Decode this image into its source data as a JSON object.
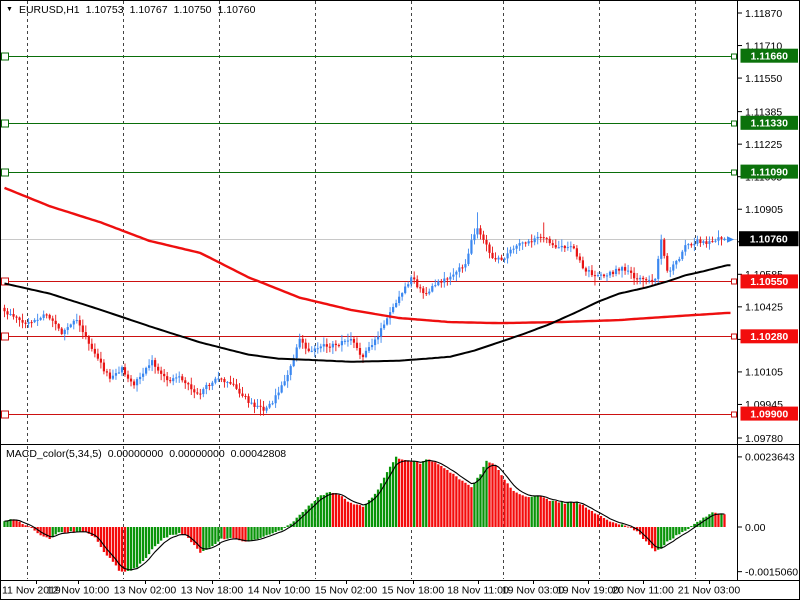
{
  "header": {
    "symbol": "EURUSD,H1",
    "open": "1.10753",
    "high": "1.10767",
    "low": "1.10750",
    "close": "1.10760"
  },
  "indicator": {
    "name": "MACD_color(5,34,5)",
    "v1": "0.00000000",
    "v2": "0.00000000",
    "v3": "0.00042808"
  },
  "colors": {
    "bull": "#3a87f0",
    "bear": "#e81414",
    "macd_up": "#089408",
    "macd_down": "#f40b0b",
    "ma_slow": "#ee0f0f",
    "ma_fast": "#000000",
    "level_res": "#0a6e0a",
    "level_sup": "#cc1111",
    "box_res": "#0b720b",
    "box_sup": "#f20d0d",
    "box_current": "#000000",
    "current_line": "#c8c8c8",
    "grid": "#444444",
    "last_tick": "#3a87f0"
  },
  "chart_data": {
    "type": "candlestick",
    "symbol": "EURUSD",
    "timeframe": "H1",
    "title": "EURUSD,H1 with MACD_color(5,34,5)",
    "ohlc_current": {
      "open": 1.10753,
      "high": 1.10767,
      "low": 1.1075,
      "close": 1.1076
    },
    "price_axis_labels": [
      "1.11870",
      "1.11710",
      "1.11550",
      "1.11385",
      "1.11225",
      "1.11065",
      "1.10905",
      "1.10745",
      "1.10585",
      "1.10425",
      "1.10265",
      "1.10105",
      "1.09945",
      "1.09780"
    ],
    "macd_axis_labels": [
      "0.0023643",
      "0.00",
      "-0.0015060"
    ],
    "time_labels": [
      "11 Nov 2019",
      "12 Nov 10:00",
      "13 Nov 02:00",
      "13 Nov 18:00",
      "14 Nov 10:00",
      "15 Nov 02:00",
      "15 Nov 18:00",
      "18 Nov 11:00",
      "19 Nov 03:00",
      "19 Nov 19:00",
      "20 Nov 11:00",
      "21 Nov 03:00"
    ],
    "levels": {
      "resistance": [
        1.1166,
        1.1133,
        1.1109
      ],
      "support": [
        1.1055,
        1.1028,
        1.099
      ],
      "current": 1.1076
    },
    "candle_count": 240,
    "price_path_anchors": [
      [
        0,
        1.104
      ],
      [
        7,
        1.1034
      ],
      [
        14,
        1.1039
      ],
      [
        19,
        1.103
      ],
      [
        24,
        1.1037
      ],
      [
        28,
        1.1024
      ],
      [
        35,
        1.1007
      ],
      [
        39,
        1.1012
      ],
      [
        43,
        1.1004
      ],
      [
        49,
        1.1016
      ],
      [
        54,
        1.1006
      ],
      [
        58,
        1.1009
      ],
      [
        64,
        1.0999
      ],
      [
        70,
        1.1007
      ],
      [
        75,
        1.1005
      ],
      [
        79,
        1.0999
      ],
      [
        83,
        1.0993
      ],
      [
        87,
        1.0992
      ],
      [
        91,
        1.1
      ],
      [
        95,
        1.1013
      ],
      [
        98,
        1.1026
      ],
      [
        101,
        1.102
      ],
      [
        105,
        1.1023
      ],
      [
        110,
        1.1024
      ],
      [
        115,
        1.1026
      ],
      [
        119,
        1.1018
      ],
      [
        123,
        1.1026
      ],
      [
        128,
        1.104
      ],
      [
        132,
        1.105
      ],
      [
        135,
        1.1057
      ],
      [
        139,
        1.1049
      ],
      [
        144,
        1.1054
      ],
      [
        149,
        1.1058
      ],
      [
        153,
        1.1064
      ],
      [
        155,
        1.1075
      ],
      [
        157,
        1.1081
      ],
      [
        159,
        1.1075
      ],
      [
        161,
        1.107
      ],
      [
        163,
        1.1065
      ],
      [
        167,
        1.1068
      ],
      [
        170,
        1.1073
      ],
      [
        174,
        1.1074
      ],
      [
        179,
        1.1077
      ],
      [
        183,
        1.1071
      ],
      [
        188,
        1.1073
      ],
      [
        192,
        1.1062
      ],
      [
        196,
        1.1057
      ],
      [
        200,
        1.1058
      ],
      [
        205,
        1.1062
      ],
      [
        209,
        1.1057
      ],
      [
        213,
        1.1055
      ],
      [
        216,
        1.1057
      ],
      [
        218,
        1.1076
      ],
      [
        220,
        1.106
      ],
      [
        223,
        1.1064
      ],
      [
        226,
        1.1072
      ],
      [
        230,
        1.1075
      ],
      [
        234,
        1.1074
      ],
      [
        237,
        1.1077
      ],
      [
        239,
        1.1076
      ]
    ],
    "wick_highs": [
      [
        157,
        1.1089
      ],
      [
        179,
        1.1084
      ],
      [
        218,
        1.1078
      ]
    ],
    "wick_lows": [
      [
        85,
        1.0989
      ],
      [
        196,
        1.1053
      ],
      [
        212,
        1.1052
      ]
    ],
    "ma_slow_anchors": [
      [
        0,
        1.1101
      ],
      [
        15,
        1.1092
      ],
      [
        32,
        1.1084
      ],
      [
        48,
        1.1075
      ],
      [
        65,
        1.1069
      ],
      [
        81,
        1.1057
      ],
      [
        98,
        1.1047
      ],
      [
        115,
        1.1041
      ],
      [
        131,
        1.1037
      ],
      [
        148,
        1.1035
      ],
      [
        164,
        1.10345
      ],
      [
        184,
        1.1035
      ],
      [
        204,
        1.1036
      ],
      [
        224,
        1.1038
      ],
      [
        240,
        1.10395
      ]
    ],
    "ma_fast_anchors": [
      [
        0,
        1.1054
      ],
      [
        15,
        1.1049
      ],
      [
        32,
        1.1041
      ],
      [
        48,
        1.1033
      ],
      [
        65,
        1.1025
      ],
      [
        81,
        1.1019
      ],
      [
        91,
        1.1017
      ],
      [
        100,
        1.10165
      ],
      [
        115,
        1.10155
      ],
      [
        131,
        1.1016
      ],
      [
        140,
        1.1017
      ],
      [
        148,
        1.1018
      ],
      [
        156,
        1.1021
      ],
      [
        164,
        1.1025
      ],
      [
        172,
        1.1029
      ],
      [
        181,
        1.1034
      ],
      [
        190,
        1.104
      ],
      [
        197,
        1.1045
      ],
      [
        204,
        1.1049
      ],
      [
        213,
        1.1052
      ],
      [
        220,
        1.1055
      ],
      [
        226,
        1.1058
      ],
      [
        232,
        1.106
      ],
      [
        240,
        1.1063
      ]
    ],
    "macd": {
      "params": "5,34,5",
      "last": 0.00042808,
      "anchors": [
        [
          0,
          0.00022
        ],
        [
          3,
          0.00028
        ],
        [
          5,
          0.00018
        ],
        [
          9,
          -5e-05
        ],
        [
          12,
          -0.00028
        ],
        [
          15,
          -0.00038
        ],
        [
          18,
          -0.0002
        ],
        [
          22,
          -0.00016
        ],
        [
          27,
          -0.00018
        ],
        [
          30,
          -0.00035
        ],
        [
          33,
          -0.00085
        ],
        [
          36,
          -0.00115
        ],
        [
          38,
          -0.00148
        ],
        [
          41,
          -0.0015
        ],
        [
          44,
          -0.00135
        ],
        [
          47,
          -0.00105
        ],
        [
          49,
          -0.00075
        ],
        [
          52,
          -0.00045
        ],
        [
          55,
          -0.00028
        ],
        [
          58,
          -0.00022
        ],
        [
          60,
          -0.00025
        ],
        [
          65,
          -0.00085
        ],
        [
          68,
          -0.0007
        ],
        [
          72,
          -0.0004
        ],
        [
          76,
          -0.00038
        ],
        [
          80,
          -0.0005
        ],
        [
          84,
          -0.00042
        ],
        [
          88,
          -0.00025
        ],
        [
          92,
          -0.0001
        ],
        [
          95,
          0.0001
        ],
        [
          100,
          0.0006
        ],
        [
          104,
          0.001
        ],
        [
          108,
          0.0012
        ],
        [
          111,
          0.0011
        ],
        [
          115,
          0.0008
        ],
        [
          119,
          0.0007
        ],
        [
          123,
          0.0011
        ],
        [
          127,
          0.00185
        ],
        [
          130,
          0.00235
        ],
        [
          134,
          0.00225
        ],
        [
          138,
          0.00215
        ],
        [
          140,
          0.00228
        ],
        [
          143,
          0.0022
        ],
        [
          148,
          0.00185
        ],
        [
          152,
          0.00155
        ],
        [
          155,
          0.00135
        ],
        [
          158,
          0.0018
        ],
        [
          160,
          0.00225
        ],
        [
          163,
          0.0021
        ],
        [
          166,
          0.0016
        ],
        [
          169,
          0.0012
        ],
        [
          174,
          0.001
        ],
        [
          178,
          0.00105
        ],
        [
          181,
          0.0009
        ],
        [
          186,
          0.0008
        ],
        [
          190,
          0.00085
        ],
        [
          194,
          0.0006
        ],
        [
          198,
          0.00035
        ],
        [
          202,
          0.00015
        ],
        [
          207,
          2e-05
        ],
        [
          210,
          -0.00015
        ],
        [
          213,
          -0.0005
        ],
        [
          216,
          -0.0008
        ],
        [
          218,
          -0.00075
        ],
        [
          220,
          -0.0005
        ],
        [
          223,
          -0.0003
        ],
        [
          226,
          -0.00012
        ],
        [
          229,
          8e-05
        ],
        [
          232,
          0.0003
        ],
        [
          235,
          0.0005
        ],
        [
          238,
          0.00046
        ],
        [
          239,
          0.00042808
        ]
      ]
    }
  }
}
